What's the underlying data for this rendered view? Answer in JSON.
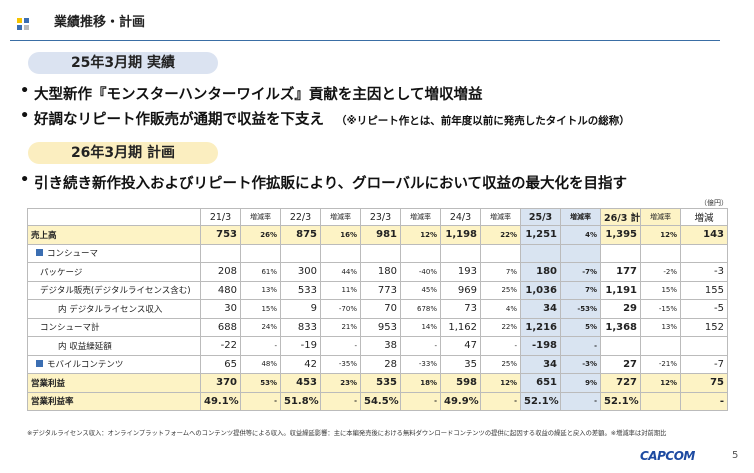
{
  "header": {
    "title": "業績推移・計画"
  },
  "section1": {
    "badge": "25年3月期 実績",
    "bullets": [
      "大型新作『モンスターハンターワイルズ』貢献を主因として増収増益",
      "好調なリピート作販売が通期で収益を下支え"
    ],
    "note": "（※リピート作とは、前年度以前に発売したタイトルの総称）"
  },
  "section2": {
    "badge": "26年3月期 計画",
    "bullets": [
      "引き続き新作投入およびリピート作拡販により、グローバルにおいて収益の最大化を目指す"
    ]
  },
  "table": {
    "unit": "（億円）",
    "columns": [
      "21/3",
      "増減率",
      "22/3",
      "増減率",
      "23/3",
      "増減率",
      "24/3",
      "増減率",
      "25/3",
      "増減率",
      "26/3 計画",
      "増減率",
      "増減"
    ],
    "rows": [
      {
        "label": "売上高",
        "cells": [
          "753",
          "26%",
          "875",
          "16%",
          "981",
          "12%",
          "1,198",
          "22%",
          "1,251",
          "4%",
          "1,395",
          "12%",
          "143"
        ]
      },
      {
        "label": "コンシューマ",
        "cells": [
          null,
          null,
          null,
          null,
          null,
          null,
          null,
          null,
          null,
          null,
          null,
          null,
          null
        ]
      },
      {
        "label": "パッケージ",
        "cells": [
          "208",
          "61%",
          "300",
          "44%",
          "180",
          "-40%",
          "193",
          "7%",
          "180",
          "-7%",
          "177",
          "-2%",
          "-3"
        ]
      },
      {
        "label": "デジタル販売(デジタルライセンス含む)",
        "cells": [
          "480",
          "13%",
          "533",
          "11%",
          "773",
          "45%",
          "969",
          "25%",
          "1,036",
          "7%",
          "1,191",
          "15%",
          "155"
        ]
      },
      {
        "label": "内 デジタルライセンス収入",
        "cells": [
          "30",
          "15%",
          "9",
          "-70%",
          "70",
          "678%",
          "73",
          "4%",
          "34",
          "-53%",
          "29",
          "-15%",
          "-5"
        ]
      },
      {
        "label": "コンシューマ計",
        "cells": [
          "688",
          "24%",
          "833",
          "21%",
          "953",
          "14%",
          "1,162",
          "22%",
          "1,216",
          "5%",
          "1,368",
          "13%",
          "152"
        ]
      },
      {
        "label": "内 収益繰延額",
        "cells": [
          "-22",
          "-",
          "-19",
          "-",
          "38",
          "-",
          "47",
          "-",
          "-198",
          "-",
          null,
          null,
          null
        ]
      },
      {
        "label": "モバイルコンテンツ",
        "cells": [
          "65",
          "48%",
          "42",
          "-35%",
          "28",
          "-33%",
          "35",
          "25%",
          "34",
          "-3%",
          "27",
          "-21%",
          "-7"
        ]
      },
      {
        "label": "営業利益",
        "cells": [
          "370",
          "53%",
          "453",
          "23%",
          "535",
          "18%",
          "598",
          "12%",
          "651",
          "9%",
          "727",
          "12%",
          "75"
        ]
      },
      {
        "label": "営業利益率",
        "cells": [
          "49.1%",
          "-",
          "51.8%",
          "-",
          "54.5%",
          "-",
          "49.9%",
          "-",
          "52.1%",
          "-",
          "52.1%",
          null,
          "-"
        ]
      }
    ]
  },
  "footnote": "※デジタルライセンス収入：オンラインプラットフォームへのコンテンツ提供等による収入。収益繰延影響：主に本編発売後における無料ダウンロードコンテンツの提供に起因する収益の繰延と戻入の差額。※増減率は対前期比",
  "footer": {
    "logo": "CAPCOM",
    "page": "5"
  }
}
